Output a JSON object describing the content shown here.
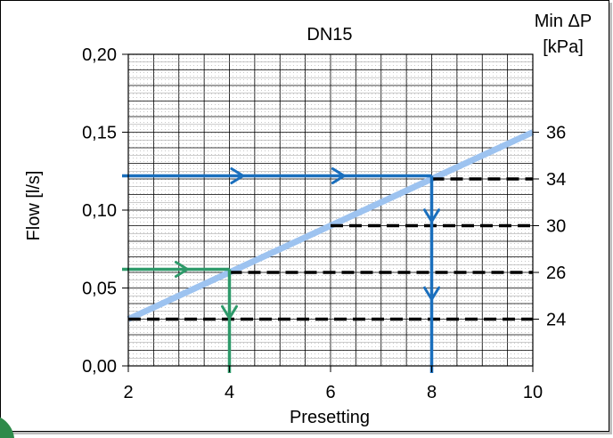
{
  "chart_data": {
    "type": "line",
    "title": "DN15",
    "xlabel": "Presetting",
    "ylabel": "Flow [l/s]",
    "y2label_line1": "Min ΔP",
    "y2label_line2": "[kPa]",
    "xlim": [
      2,
      10
    ],
    "ylim": [
      0,
      0.2
    ],
    "xticks": [
      {
        "value": 2,
        "label": "2"
      },
      {
        "value": 4,
        "label": "4"
      },
      {
        "value": 6,
        "label": "6"
      },
      {
        "value": 8,
        "label": "8"
      },
      {
        "value": 10,
        "label": "10"
      }
    ],
    "yticks": [
      {
        "value": 0.0,
        "label": "0,00"
      },
      {
        "value": 0.05,
        "label": "0,05"
      },
      {
        "value": 0.1,
        "label": "0,10"
      },
      {
        "value": 0.15,
        "label": "0,15"
      },
      {
        "value": 0.2,
        "label": "0,20"
      }
    ],
    "y2ticks": [
      {
        "flow": 0.15,
        "label": "36"
      },
      {
        "flow": 0.12,
        "label": "34"
      },
      {
        "flow": 0.09,
        "label": "30"
      },
      {
        "flow": 0.06,
        "label": "26"
      },
      {
        "flow": 0.03,
        "label": "24"
      }
    ],
    "grid": true,
    "series": [
      {
        "kind": "flow-line",
        "color": "#9dc3f0",
        "x": [
          2,
          10
        ],
        "y": [
          0.03,
          0.15
        ]
      },
      {
        "kind": "min-dp-line",
        "color": "#000000",
        "x": [
          2,
          10
        ],
        "y": [
          0.03,
          0.03
        ]
      },
      {
        "kind": "min-dp-line",
        "color": "#000000",
        "x": [
          4,
          10
        ],
        "y": [
          0.06,
          0.06
        ]
      },
      {
        "kind": "min-dp-line",
        "color": "#000000",
        "x": [
          6,
          10
        ],
        "y": [
          0.09,
          0.09
        ]
      },
      {
        "kind": "min-dp-line",
        "color": "#000000",
        "x": [
          8,
          10
        ],
        "y": [
          0.12,
          0.12
        ]
      }
    ],
    "example_paths": [
      {
        "color": "#2e9a6a",
        "flow": 0.062,
        "presetting": 4
      },
      {
        "color": "#1a6fbd",
        "flow": 0.122,
        "presetting": 8
      }
    ],
    "corner_accent": "#2e8a4a"
  }
}
